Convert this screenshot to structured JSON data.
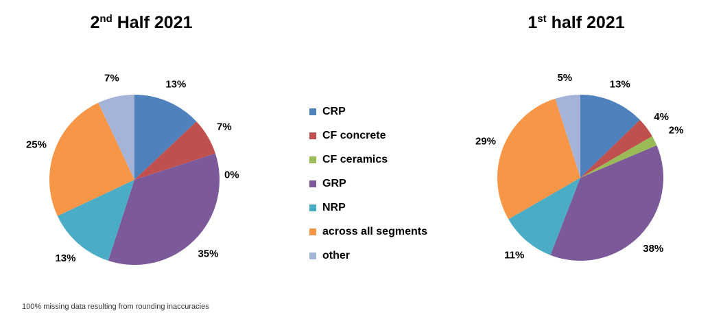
{
  "chart_data": [
    {
      "type": "pie",
      "title_main": "2",
      "title_sup": "nd",
      "title_rest": " Half 2021",
      "categories": [
        "CRP",
        "CF concrete",
        "CF ceramics",
        "GRP",
        "NRP",
        "across all segments",
        "other"
      ],
      "values": [
        13,
        7,
        0,
        35,
        13,
        25,
        7
      ],
      "labels": [
        "13%",
        "7%",
        "0%",
        "35%",
        "13%",
        "25%",
        "7%"
      ],
      "colors": [
        "#4f81bd",
        "#c0504d",
        "#9bbb59",
        "#7c5a99",
        "#4bacc6",
        "#f79646",
        "#a5b3d8"
      ]
    },
    {
      "type": "pie",
      "title_main": "1",
      "title_sup": "st",
      "title_rest": " half 2021",
      "categories": [
        "CRP",
        "CF concrete",
        "CF ceramics",
        "GRP",
        "NRP",
        "across all segments",
        "other"
      ],
      "values": [
        13,
        4,
        2,
        38,
        11,
        29,
        5
      ],
      "labels": [
        "13%",
        "4%",
        "2%",
        "38%",
        "11%",
        "29%",
        "5%"
      ],
      "colors": [
        "#4f81bd",
        "#c0504d",
        "#9bbb59",
        "#7c5a99",
        "#4bacc6",
        "#f79646",
        "#a5b3d8"
      ]
    }
  ],
  "legend": [
    {
      "label": "CRP",
      "color": "#4f81bd"
    },
    {
      "label": "CF concrete",
      "color": "#c0504d"
    },
    {
      "label": "CF ceramics",
      "color": "#9bbb59"
    },
    {
      "label": "GRP",
      "color": "#7c5a99"
    },
    {
      "label": "NRP",
      "color": "#4bacc6"
    },
    {
      "label": "across all segments",
      "color": "#f79646"
    },
    {
      "label": "other",
      "color": "#a5b3d8"
    }
  ],
  "footnote": "100% missing data resulting from rounding inaccuracies"
}
